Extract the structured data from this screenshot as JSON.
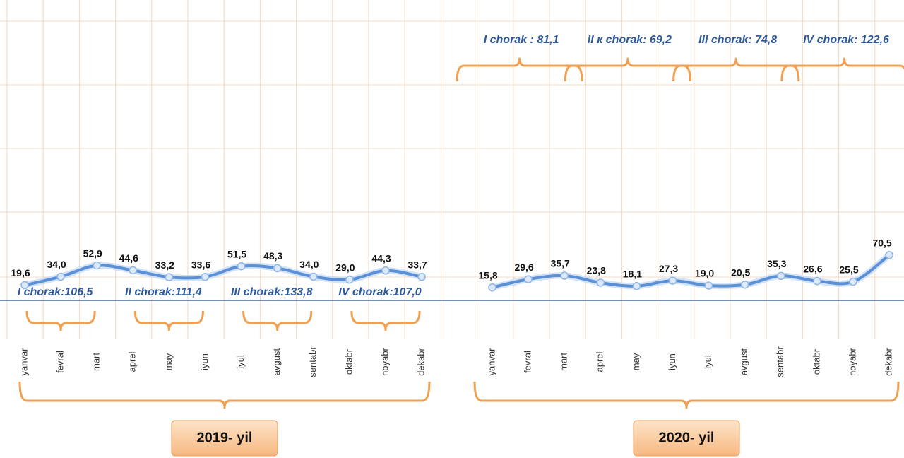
{
  "chart_data": [
    {
      "type": "line",
      "year_label": "2019- yil",
      "color": "#5b8fd6",
      "categories": [
        "yanvar",
        "fevral",
        "mart",
        "aprel",
        "may",
        "iyun",
        "iyul",
        "avgust",
        "sentabr",
        "oktabr",
        "noyabr",
        "dekabr"
      ],
      "values": [
        19.6,
        34.0,
        52.9,
        44.6,
        33.2,
        33.6,
        51.5,
        48.3,
        34.0,
        29.0,
        44.3,
        33.7
      ],
      "value_labels": [
        "19,6",
        "34,0",
        "52,9",
        "44,6",
        "33,2",
        "33,6",
        "51,5",
        "48,3",
        "34,0",
        "29,0",
        "44,3",
        "33,7"
      ],
      "annotations": [
        "I chorak:106,5",
        "II chorak:111,4",
        "III chorak:133,8",
        "IV chorak:107,0"
      ]
    },
    {
      "type": "line",
      "year_label": "2020- yil",
      "color": "#5b8fd6",
      "categories": [
        "yanvar",
        "fevral",
        "mart",
        "aprel",
        "may",
        "iyun",
        "iyul",
        "avgust",
        "sentabr",
        "oktabr",
        "noyabr",
        "dekabr"
      ],
      "values": [
        15.8,
        29.6,
        35.7,
        23.8,
        18.1,
        27.3,
        19.0,
        20.5,
        35.3,
        26.6,
        25.5,
        70.5
      ],
      "value_labels": [
        "15,8",
        "29,6",
        "35,7",
        "23,8",
        "18,1",
        "27,3",
        "19,0",
        "20,5",
        "35,3",
        "26,6",
        "25,5",
        "70,5"
      ],
      "annotations": [
        "I chorak : 81,1",
        "II к chorak: 69,2",
        "III chorak: 74,8",
        "IV chorak: 122,6"
      ]
    }
  ]
}
